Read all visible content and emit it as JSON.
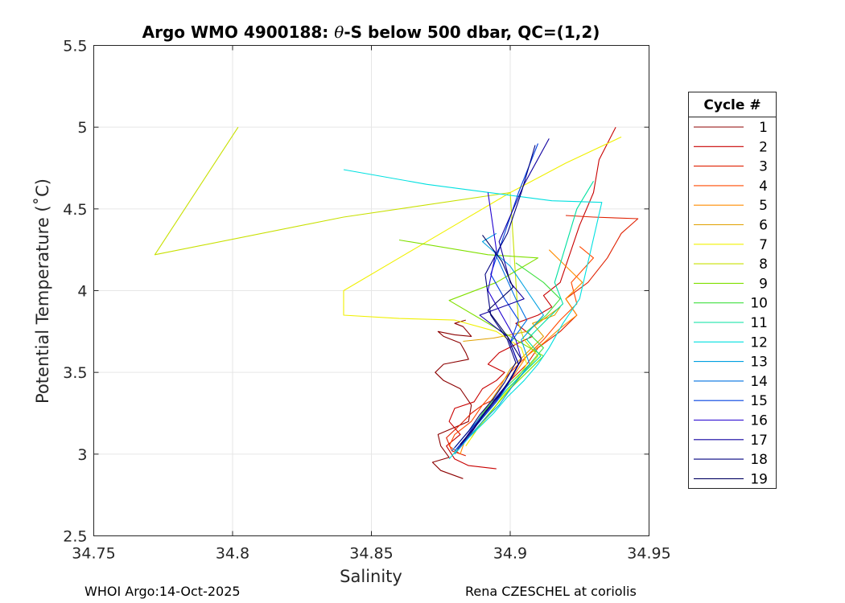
{
  "page": {
    "title_prefix": "Argo WMO 4900188: ",
    "title_theta": "θ",
    "title_suffix": "-S below 500 dbar,  QC=(1,2)",
    "footer_left": "WHOI Argo:14-Oct-2025",
    "footer_right": "Rena CZESCHEL at coriolis"
  },
  "chart_data": {
    "type": "line",
    "title": "Argo WMO 4900188: θ-S below 500 dbar,  QC=(1,2)",
    "xlabel": "Salinity",
    "ylabel": "Potential Temperature (˚C)",
    "xlim": [
      34.75,
      34.95
    ],
    "ylim": [
      2.5,
      5.5
    ],
    "xticks": [
      34.75,
      34.8,
      34.85,
      34.9,
      34.95
    ],
    "xtick_labels": [
      "34.75",
      "34.8",
      "34.85",
      "34.9",
      "34.95"
    ],
    "yticks": [
      2.5,
      3,
      3.5,
      4,
      4.5,
      5,
      5.5
    ],
    "ytick_labels": [
      "2.5",
      "3",
      "3.5",
      "4",
      "4.5",
      "5",
      "5.5"
    ],
    "grid": true,
    "legend_title": "Cycle #",
    "legend_position": "outside-right",
    "series": [
      {
        "name": "1",
        "color": "#8c0000",
        "x": [
          34.883,
          34.875,
          34.872,
          34.878,
          34.875,
          34.874,
          34.885,
          34.886,
          34.882,
          34.876,
          34.873,
          34.876,
          34.885,
          34.884,
          34.882,
          34.876,
          34.874,
          34.88,
          34.886,
          34.883,
          34.88,
          34.884
        ],
        "y": [
          2.85,
          2.9,
          2.95,
          2.98,
          3.05,
          3.12,
          3.2,
          3.3,
          3.4,
          3.45,
          3.5,
          3.55,
          3.58,
          3.62,
          3.68,
          3.72,
          3.75,
          3.73,
          3.72,
          3.78,
          3.8,
          3.82
        ]
      },
      {
        "name": "2",
        "color": "#c80000",
        "x": [
          34.895,
          34.885,
          34.88,
          34.877,
          34.882,
          34.878,
          34.88,
          34.887,
          34.89,
          34.895,
          34.898,
          34.892,
          34.896,
          34.903,
          34.908,
          34.902,
          34.91,
          34.915,
          34.912,
          34.918,
          34.925,
          34.93,
          34.932,
          34.938
        ],
        "y": [
          2.91,
          2.93,
          2.97,
          3.05,
          3.12,
          3.2,
          3.28,
          3.32,
          3.4,
          3.45,
          3.5,
          3.55,
          3.62,
          3.68,
          3.72,
          3.8,
          3.85,
          3.9,
          3.97,
          4.05,
          4.4,
          4.6,
          4.8,
          5.0
        ]
      },
      {
        "name": "3",
        "color": "#e02000",
        "x": [
          34.884,
          34.879,
          34.877,
          34.882,
          34.886,
          34.89,
          34.896,
          34.9,
          34.906,
          34.91,
          34.918,
          34.924,
          34.92,
          34.928,
          34.935,
          34.94,
          34.946,
          34.93,
          34.92
        ],
        "y": [
          2.99,
          3.02,
          3.1,
          3.18,
          3.25,
          3.3,
          3.35,
          3.45,
          3.55,
          3.65,
          3.75,
          3.85,
          3.95,
          4.05,
          4.2,
          4.35,
          4.44,
          4.45,
          4.46
        ]
      },
      {
        "name": "4",
        "color": "#ff4a00",
        "x": [
          34.882,
          34.878,
          34.88,
          34.886,
          34.89,
          34.895,
          34.9,
          34.906,
          34.912,
          34.918,
          34.924,
          34.922,
          34.93,
          34.925
        ],
        "y": [
          3.0,
          3.05,
          3.12,
          3.2,
          3.3,
          3.4,
          3.5,
          3.6,
          3.7,
          3.82,
          3.92,
          4.05,
          4.2,
          4.27
        ]
      },
      {
        "name": "5",
        "color": "#ff8c00",
        "x": [
          34.882,
          34.884,
          34.889,
          34.893,
          34.898,
          34.902,
          34.906,
          34.912,
          34.918,
          34.924,
          34.92,
          34.926,
          34.92,
          34.914
        ],
        "y": [
          3.0,
          3.1,
          3.2,
          3.3,
          3.4,
          3.5,
          3.6,
          3.68,
          3.77,
          3.85,
          3.95,
          4.05,
          4.15,
          4.25
        ]
      },
      {
        "name": "6",
        "color": "#e0a000",
        "x": [
          34.88,
          34.884,
          34.888,
          34.892,
          34.896,
          34.9,
          34.906,
          34.912,
          34.908,
          34.916,
          34.918,
          34.906,
          34.894,
          34.883
        ],
        "y": [
          3.0,
          3.1,
          3.2,
          3.3,
          3.4,
          3.52,
          3.62,
          3.72,
          3.8,
          3.85,
          3.9,
          3.75,
          3.71,
          3.69
        ]
      },
      {
        "name": "7",
        "color": "#f0f000",
        "x": [
          34.884,
          34.888,
          34.893,
          34.897,
          34.902,
          34.906,
          34.904,
          34.895,
          34.88,
          34.86,
          34.84,
          34.84,
          34.86,
          34.88,
          34.9,
          34.92,
          34.94
        ],
        "y": [
          3.05,
          3.15,
          3.25,
          3.35,
          3.45,
          3.55,
          3.65,
          3.75,
          3.82,
          3.83,
          3.85,
          4.0,
          4.2,
          4.4,
          4.6,
          4.78,
          4.94
        ]
      },
      {
        "name": "8",
        "color": "#c8e000",
        "x": [
          34.886,
          34.89,
          34.895,
          34.9,
          34.905,
          34.91,
          34.905,
          34.903,
          34.9,
          34.84,
          34.772,
          34.802
        ],
        "y": [
          3.1,
          3.2,
          3.3,
          3.4,
          3.5,
          3.6,
          3.7,
          3.8,
          4.6,
          4.45,
          4.22,
          5.0
        ]
      },
      {
        "name": "9",
        "color": "#80e000",
        "x": [
          34.885,
          34.89,
          34.895,
          34.9,
          34.906,
          34.912,
          34.902,
          34.89,
          34.878,
          34.895,
          34.91,
          34.892,
          34.86
        ],
        "y": [
          3.1,
          3.2,
          3.3,
          3.4,
          3.5,
          3.6,
          3.7,
          3.82,
          3.94,
          4.05,
          4.2,
          4.22,
          4.31
        ]
      },
      {
        "name": "10",
        "color": "#40e040",
        "x": [
          34.886,
          34.89,
          34.895,
          34.901,
          34.907,
          34.912,
          34.906,
          34.913,
          34.918,
          34.912,
          34.902
        ],
        "y": [
          3.15,
          3.25,
          3.35,
          3.45,
          3.55,
          3.65,
          3.75,
          3.85,
          3.95,
          4.05,
          4.17
        ]
      },
      {
        "name": "11",
        "color": "#00e0a0",
        "x": [
          34.884,
          34.889,
          34.894,
          34.899,
          34.905,
          34.911,
          34.906,
          34.913,
          34.919,
          34.916,
          34.924,
          34.93
        ],
        "y": [
          3.1,
          3.2,
          3.3,
          3.4,
          3.5,
          3.6,
          3.7,
          3.82,
          3.92,
          4.05,
          4.5,
          4.67
        ]
      },
      {
        "name": "12",
        "color": "#00e0e0",
        "x": [
          34.878,
          34.882,
          34.888,
          34.894,
          34.899,
          34.905,
          34.91,
          34.914,
          34.919,
          34.925,
          34.933,
          34.915,
          34.87,
          34.84
        ],
        "y": [
          2.97,
          3.05,
          3.15,
          3.25,
          3.35,
          3.45,
          3.55,
          3.65,
          3.8,
          3.95,
          4.54,
          4.55,
          4.65,
          4.74
        ]
      },
      {
        "name": "13",
        "color": "#00a0e0",
        "x": [
          34.88,
          34.885,
          34.89,
          34.896,
          34.901,
          34.907,
          34.904,
          34.912,
          34.906,
          34.9,
          34.89,
          34.895
        ],
        "y": [
          3.0,
          3.1,
          3.2,
          3.3,
          3.42,
          3.55,
          3.7,
          3.85,
          4.0,
          4.15,
          4.3,
          4.35
        ]
      },
      {
        "name": "14",
        "color": "#0070e0",
        "x": [
          34.879,
          34.884,
          34.889,
          34.894,
          34.899,
          34.903,
          34.9,
          34.906,
          34.902,
          34.898,
          34.894
        ],
        "y": [
          3.02,
          3.12,
          3.22,
          3.32,
          3.42,
          3.55,
          3.68,
          3.82,
          3.95,
          4.1,
          4.25
        ]
      },
      {
        "name": "15",
        "color": "#0040e0",
        "x": [
          34.88,
          34.885,
          34.89,
          34.895,
          34.899,
          34.903,
          34.9,
          34.903,
          34.898,
          34.893,
          34.897,
          34.903,
          34.91
        ],
        "y": [
          3.02,
          3.12,
          3.22,
          3.32,
          3.42,
          3.55,
          3.68,
          3.82,
          3.95,
          4.1,
          4.3,
          4.6,
          4.9
        ]
      },
      {
        "name": "16",
        "color": "#2000d0",
        "x": [
          34.882,
          34.886,
          34.891,
          34.895,
          34.9,
          34.904,
          34.902,
          34.897,
          34.892,
          34.895,
          34.892
        ],
        "y": [
          3.05,
          3.15,
          3.25,
          3.35,
          3.45,
          3.58,
          3.7,
          3.85,
          4.0,
          4.25,
          4.6
        ]
      },
      {
        "name": "17",
        "color": "#1000a0",
        "x": [
          34.881,
          34.886,
          34.89,
          34.895,
          34.899,
          34.903,
          34.899,
          34.889,
          34.905,
          34.9,
          34.896,
          34.905,
          34.914
        ],
        "y": [
          3.03,
          3.13,
          3.23,
          3.33,
          3.43,
          3.55,
          3.72,
          3.85,
          3.95,
          4.05,
          4.3,
          4.65,
          4.93
        ]
      },
      {
        "name": "18",
        "color": "#000080",
        "x": [
          34.88,
          34.885,
          34.889,
          34.894,
          34.898,
          34.902,
          34.899,
          34.893,
          34.891,
          34.899,
          34.904,
          34.909
        ],
        "y": [
          3.04,
          3.14,
          3.24,
          3.34,
          3.44,
          3.56,
          3.7,
          3.85,
          4.1,
          4.35,
          4.6,
          4.89
        ]
      },
      {
        "name": "19",
        "color": "#000060",
        "x": [
          34.882,
          34.887,
          34.891,
          34.896,
          34.9,
          34.904,
          34.899,
          34.892,
          34.901,
          34.897,
          34.89
        ],
        "y": [
          3.06,
          3.16,
          3.26,
          3.36,
          3.46,
          3.58,
          3.72,
          3.88,
          4.02,
          4.18,
          4.34
        ]
      }
    ]
  }
}
